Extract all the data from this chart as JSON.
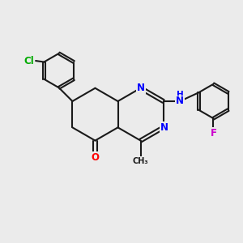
{
  "bg_color": "#ebebeb",
  "bond_color": "#1a1a1a",
  "bond_width": 1.5,
  "atom_colors": {
    "N": "#0000ff",
    "O": "#ff0000",
    "Cl": "#00aa00",
    "F": "#cc00cc",
    "H": "#0000ff",
    "C": "#1a1a1a"
  },
  "font_size_atom": 8.5,
  "font_size_small": 6.5
}
